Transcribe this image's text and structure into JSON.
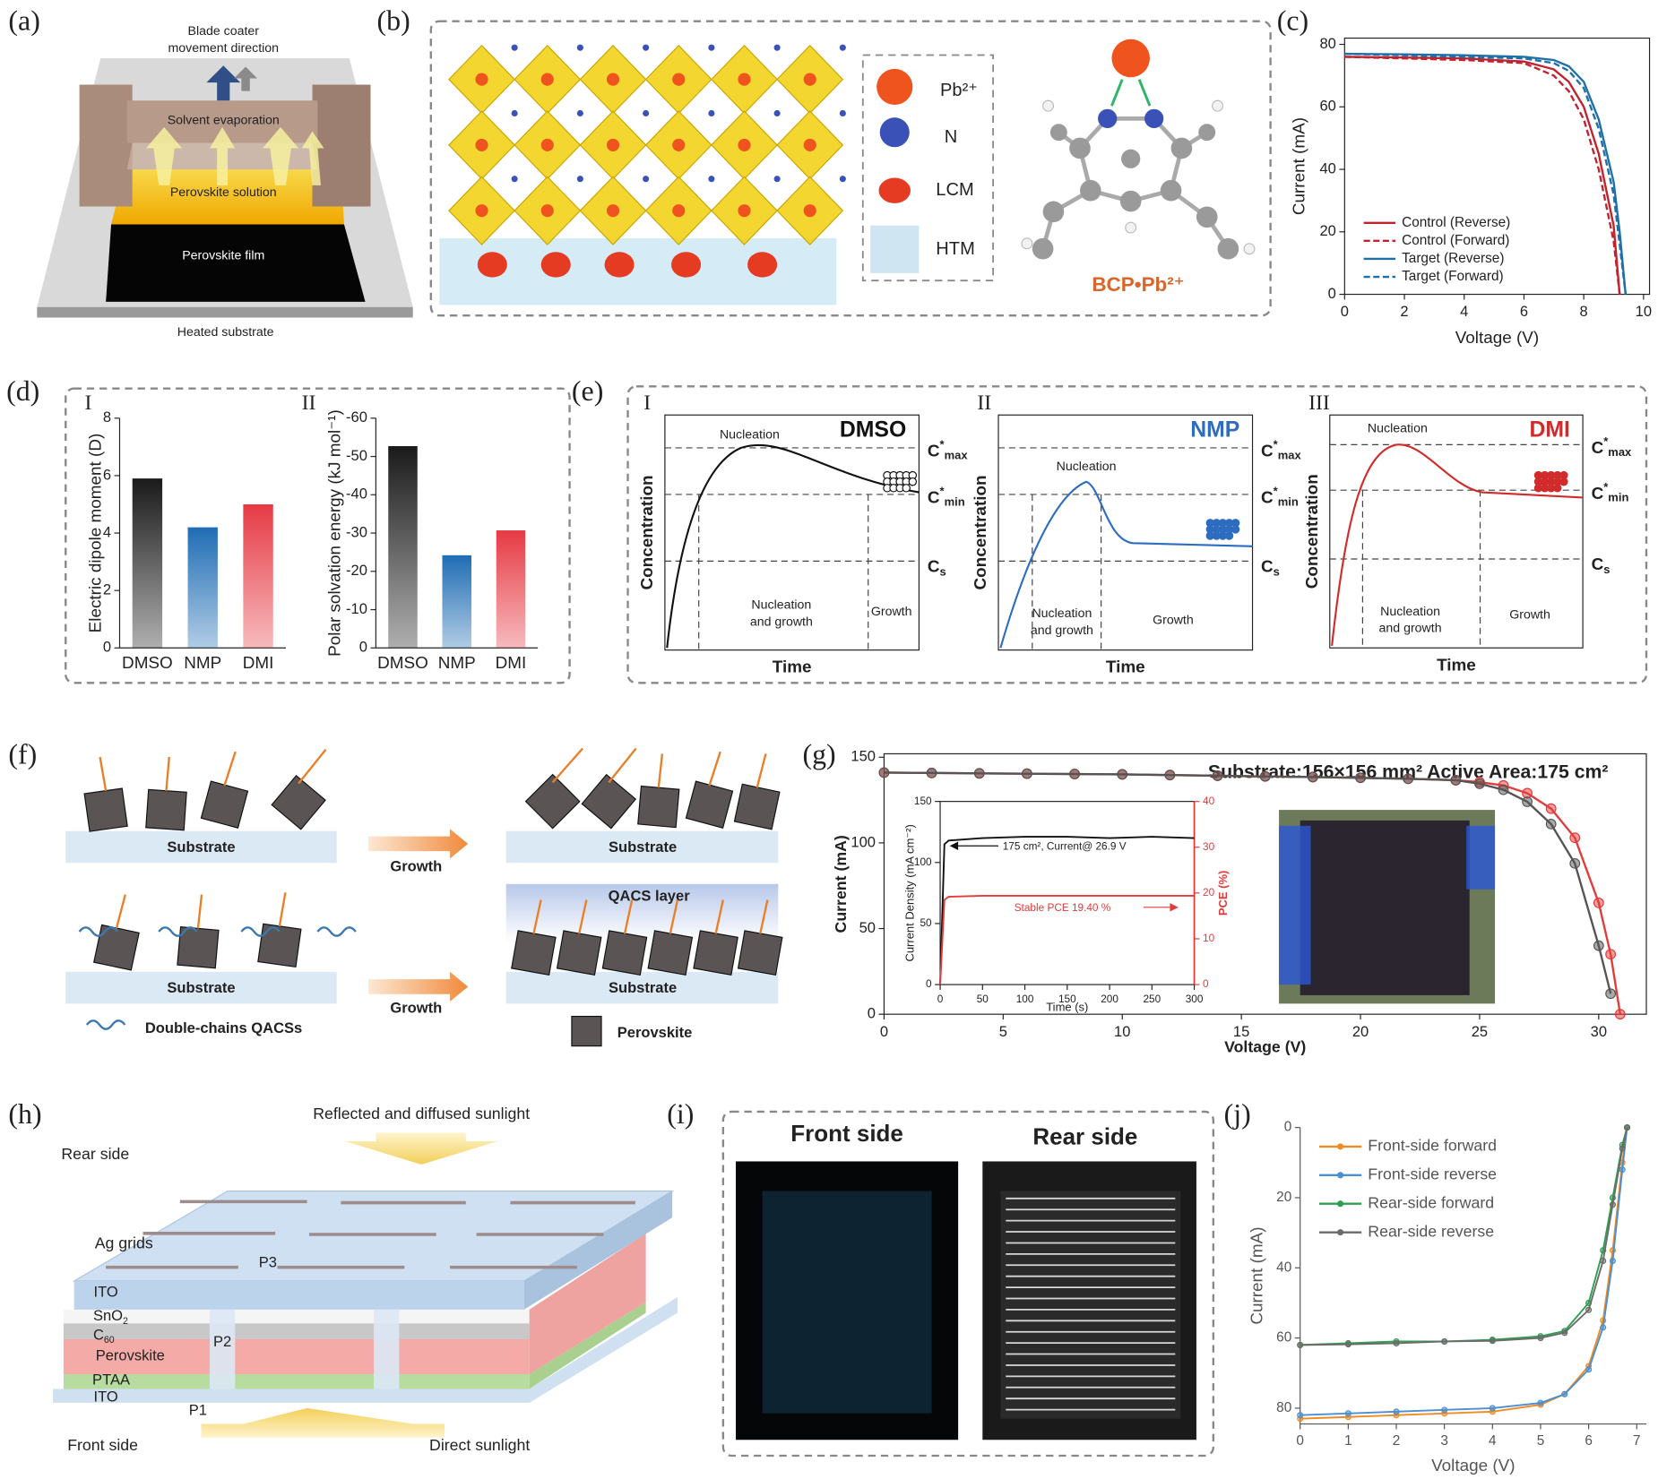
{
  "panels": [
    "(a)",
    "(b)",
    "(c)",
    "(d)",
    "(e)",
    "(f)",
    "(g)",
    "(h)",
    "(i)",
    "(j)"
  ],
  "a": {
    "coater": [
      "Blade coater",
      "movement direction"
    ],
    "evaporation": "Solvent evaporation",
    "solution": "Perovskite solution",
    "film": "Perovskite film",
    "substrate": "Heated substrate"
  },
  "b": {
    "pb": "Pb²⁺",
    "n": "N",
    "lcm": "LCM",
    "htm": "HTM",
    "complex": "BCP•Pb²⁺"
  },
  "d": {
    "sub1": "I",
    "sub2": "II"
  },
  "e": {
    "panels": [
      {
        "roman": "I",
        "solvent": "DMSO",
        "nucleation": "Nucleation",
        "nucleation_growth": [
          "Nucleation",
          "and growth"
        ],
        "growth": "Growth",
        "ylabel": "Concentration",
        "xlabel": "Time",
        "cmax": [
          "C",
          "*",
          "max"
        ],
        "cmin": [
          "C",
          "*",
          "min"
        ],
        "cs": [
          "C",
          "s"
        ]
      },
      {
        "roman": "II",
        "solvent": "NMP",
        "nucleation": "Nucleation",
        "nucleation_growth": [
          "Nucleation",
          "and growth"
        ],
        "growth": "Growth",
        "ylabel": "Concentration",
        "xlabel": "Time",
        "cmax": [
          "C",
          "*",
          "max"
        ],
        "cmin": [
          "C",
          "*",
          "min"
        ],
        "cs": [
          "C",
          "s"
        ]
      },
      {
        "roman": "III",
        "solvent": "DMI",
        "nucleation": "Nucleation",
        "nucleation_growth": [
          "Nucleation",
          "and growth"
        ],
        "growth": "Growth",
        "ylabel": "Concentration",
        "xlabel": "Time",
        "cmax": [
          "C",
          "*",
          "max"
        ],
        "cmin": [
          "C",
          "*",
          "min"
        ],
        "cs": [
          "C",
          "s"
        ]
      }
    ]
  },
  "f": {
    "substrate": [
      "Substrate",
      "Substrate",
      "Substrate",
      "Substrate"
    ],
    "growth": [
      "Growth",
      "Growth"
    ],
    "qacs_layer": "QACS layer",
    "qacs_legend": "Double-chains QACSs",
    "perovskite_legend": "Perovskite"
  },
  "h": {
    "reflected": "Reflected and diffused sunlight",
    "rear": "Rear side",
    "ag": "Ag grids",
    "p3": "P3",
    "ito_top": "ITO",
    "sno2": [
      "SnO",
      "2"
    ],
    "c60": [
      "C",
      "60"
    ],
    "perovskite": "Perovskite",
    "p2": "P2",
    "ptaa": "PTAA",
    "ito_bottom": "ITO",
    "p1": "P1",
    "front": "Front side",
    "direct": "Direct sunlight"
  },
  "i": {
    "front": "Front side",
    "rear": "Rear side"
  },
  "chart_data": [
    {
      "type": "line",
      "frame": "box",
      "xlabel": "Voltage (V)",
      "ylabel": "Current (mA)",
      "xlim": [
        0,
        10.2
      ],
      "xticks": [
        0,
        2,
        4,
        6,
        8,
        10
      ],
      "ylim": [
        0,
        82
      ],
      "yticks": [
        0,
        20,
        40,
        60,
        80
      ],
      "legend": "lower left",
      "x": [
        0,
        2,
        4,
        6,
        7,
        7.5,
        8,
        8.5,
        9,
        9.2,
        9.4
      ],
      "series": [
        {
          "name": "Control (Reverse)",
          "color": "#c0232e",
          "values": [
            76,
            75.8,
            75.5,
            74.5,
            72,
            68,
            60,
            45,
            22,
            0,
            null
          ]
        },
        {
          "name": "Control (Forward)",
          "color": "#c0232e",
          "dash": true,
          "values": [
            76,
            75.5,
            75,
            74,
            70,
            65,
            56,
            40,
            17,
            0,
            null
          ]
        },
        {
          "name": "Target (Reverse)",
          "color": "#1f6fa8",
          "values": [
            77,
            76.8,
            76.5,
            76,
            75,
            73,
            68,
            56,
            36,
            20,
            0
          ]
        },
        {
          "name": "Target (Forward)",
          "color": "#1f6fa8",
          "dash": true,
          "values": [
            77,
            76.5,
            76,
            75.5,
            74,
            71.5,
            66,
            53,
            32,
            16,
            0
          ]
        }
      ]
    },
    {
      "type": "bar",
      "frame": "axes",
      "ylabel": "Electric dipole moment (D)",
      "categories": [
        "DMSO",
        "NMP",
        "DMI"
      ],
      "values": [
        5.9,
        4.2,
        5.0
      ],
      "colors": [
        "#1a1a1a",
        "#1f6db4",
        "#e63a44"
      ],
      "ylim": [
        0,
        8
      ],
      "yticks": [
        0,
        2,
        4,
        6,
        8
      ]
    },
    {
      "type": "bar",
      "frame": "axes",
      "ylabel": "Polar solvation energy (kJ mol⁻¹)",
      "categories": [
        "DMSO",
        "NMP",
        "DMI"
      ],
      "values": [
        -52.7,
        -24.2,
        -30.7
      ],
      "colors": [
        "#1a1a1a",
        "#1f6db4",
        "#e63a44"
      ],
      "ylim": [
        0,
        -60
      ],
      "yticks": [
        0,
        -10,
        -20,
        -30,
        -40,
        -50,
        -60
      ]
    },
    {
      "type": "line",
      "frame": "box",
      "title": "Substrate:156×156 mm² Active Area:175 cm²",
      "xlabel": "Voltage (V)",
      "ylabel": "Current (mA)",
      "xlim": [
        0,
        32
      ],
      "xticks": [
        0,
        5,
        10,
        15,
        20,
        25,
        30
      ],
      "ylim": [
        0,
        152
      ],
      "yticks": [
        0,
        50,
        100,
        150
      ],
      "x": [
        0,
        2,
        4,
        6,
        8,
        10,
        12,
        14,
        16,
        18,
        20,
        22,
        24,
        25,
        26,
        27,
        28,
        29,
        30,
        30.5,
        30.9
      ],
      "series": [
        {
          "color": "#e23b3b",
          "marker": true,
          "values": [
            141,
            140.8,
            140.6,
            140.4,
            140.2,
            140,
            139.6,
            139.2,
            138.8,
            138.4,
            138,
            137.4,
            136.6,
            135.5,
            133.5,
            129,
            120,
            103,
            65,
            35,
            0
          ]
        },
        {
          "color": "#555555",
          "marker": true,
          "values": [
            141,
            140.8,
            140.6,
            140.4,
            140.2,
            140,
            139.6,
            139.2,
            138.8,
            138.4,
            138,
            137.4,
            136.6,
            134.5,
            131,
            124,
            111,
            88,
            40,
            12,
            null
          ]
        }
      ]
    },
    {
      "type": "line",
      "frame": "box",
      "xlabel": "Time (s)",
      "ylabel": "Current Density (mA cm⁻²)",
      "y2label": "PCE (%)",
      "annotations": [
        "175 cm², Current@ 26.9 V",
        "Stable PCE 19.40 %"
      ],
      "xlim": [
        0,
        300
      ],
      "xticks": [
        0,
        50,
        100,
        150,
        200,
        250,
        300
      ],
      "ylim": [
        0,
        150
      ],
      "yticks": [
        0,
        50,
        100,
        150
      ],
      "y2lim": [
        0,
        40
      ],
      "y2ticks": [
        0,
        10,
        20,
        30,
        40
      ],
      "x": [
        0,
        5,
        10,
        50,
        100,
        150,
        200,
        250,
        300
      ],
      "series": [
        {
          "color": "#111111",
          "values": [
            0,
            115,
            118,
            120,
            121,
            121,
            120,
            121,
            120
          ]
        },
        {
          "color": "#e23b3b",
          "axis": "y2",
          "values": [
            0,
            18.5,
            19.2,
            19.4,
            19.4,
            19.4,
            19.4,
            19.4,
            19.4
          ]
        }
      ]
    },
    {
      "type": "line",
      "frame": "axes",
      "xlabel": "Voltage (V)",
      "ylabel": "Current (mA)",
      "legend": "upper left",
      "xlim": [
        0,
        7.2
      ],
      "xticks": [
        0,
        1,
        2,
        3,
        4,
        5,
        6,
        7
      ],
      "ylim": [
        84.5,
        0
      ],
      "yticks": [
        0,
        20,
        40,
        60,
        80
      ],
      "x": [
        0,
        1,
        2,
        3,
        4,
        5,
        5.5,
        6,
        6.3,
        6.5,
        6.7,
        6.8
      ],
      "series": [
        {
          "name": "Front-side forward",
          "color": "#f08a24",
          "marker": true,
          "values": [
            83,
            82.5,
            82,
            81.5,
            81,
            79,
            76,
            68,
            55,
            35,
            10,
            0
          ]
        },
        {
          "name": "Front-side reverse",
          "color": "#4a90d0",
          "marker": true,
          "values": [
            82,
            81.5,
            81,
            80.5,
            80,
            78.5,
            76,
            69,
            57,
            38,
            12,
            0
          ]
        },
        {
          "name": "Rear-side forward",
          "color": "#2e9e50",
          "marker": true,
          "values": [
            62,
            61.5,
            61,
            61,
            60.5,
            59.5,
            58,
            50,
            35,
            20,
            5,
            0
          ]
        },
        {
          "name": "Rear-side reverse",
          "color": "#6b6b6b",
          "marker": true,
          "values": [
            62,
            61.8,
            61.5,
            61,
            60.8,
            60,
            58.5,
            52,
            38,
            22,
            6,
            0
          ]
        }
      ]
    }
  ]
}
